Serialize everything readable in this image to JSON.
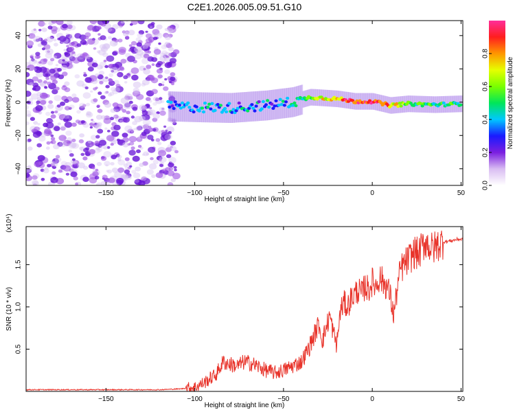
{
  "title": "C2E1.2026.005.09.51.G10",
  "chart_data": [
    {
      "type": "heatmap",
      "xlabel": "Height of straight line (km)",
      "ylabel": "Frequency (Hz)",
      "xlim": [
        -195,
        51
      ],
      "ylim": [
        -50,
        49
      ],
      "x_ticks": [
        -150,
        -100,
        -50,
        0,
        50
      ],
      "y_ticks": [
        -40,
        -20,
        0,
        20,
        40
      ],
      "colorbar": {
        "label": "Normalized spectral amplitude",
        "range": [
          0,
          1
        ],
        "ticks": [
          "0.0",
          "0.2",
          "0.4",
          "0.6",
          "0.8"
        ]
      },
      "frequency_track": [
        {
          "x": -115,
          "f": -2.5,
          "amp": 0.4
        },
        {
          "x": -100,
          "f": -3.0,
          "amp": 0.38
        },
        {
          "x": -80,
          "f": -3.5,
          "amp": 0.42
        },
        {
          "x": -60,
          "f": -2.0,
          "amp": 0.4
        },
        {
          "x": -45,
          "f": 0.0,
          "amp": 0.45
        },
        {
          "x": -35,
          "f": 3.0,
          "amp": 0.6
        },
        {
          "x": -20,
          "f": 2.0,
          "amp": 0.85
        },
        {
          "x": -10,
          "f": 0.5,
          "amp": 0.95
        },
        {
          "x": 0,
          "f": 0.5,
          "amp": 0.95
        },
        {
          "x": 10,
          "f": -2.0,
          "amp": 0.85
        },
        {
          "x": 20,
          "f": -1.0,
          "amp": 0.6
        },
        {
          "x": 35,
          "f": -1.5,
          "amp": 0.55
        },
        {
          "x": 50,
          "f": -1.0,
          "amp": 0.5
        }
      ],
      "noise_region_x": [
        -195,
        -110
      ],
      "grid": false
    },
    {
      "type": "line",
      "xlabel": "Height of straight line (km)",
      "ylabel": "SNR (10 * v/v)",
      "y_multiplier": "(x10⁴)",
      "xlim": [
        -195,
        51
      ],
      "ylim": [
        0,
        1.95
      ],
      "x_ticks": [
        -150,
        -100,
        -50,
        0,
        50
      ],
      "y_ticks": [
        "0.5",
        "1.0",
        "1.5"
      ],
      "color": "#e8332a",
      "series": [
        {
          "x": [
            -195,
            -150,
            -120,
            -108,
            -100,
            -95,
            -88,
            -84,
            -80,
            -76,
            -72,
            -68,
            -65,
            -60,
            -55,
            -50,
            -45,
            -40,
            -36,
            -32,
            -30,
            -28,
            -26,
            -24,
            -22,
            -20,
            -18,
            -16,
            -14,
            -12,
            -10,
            -8,
            -6,
            -4,
            -2,
            0,
            2,
            4,
            6,
            8,
            10,
            12,
            14,
            16,
            18,
            20,
            22,
            24,
            26,
            28,
            30,
            32,
            34,
            36,
            38,
            40,
            44,
            48,
            51
          ],
          "values": [
            0.02,
            0.02,
            0.02,
            0.03,
            0.05,
            0.1,
            0.2,
            0.35,
            0.32,
            0.3,
            0.35,
            0.33,
            0.3,
            0.25,
            0.22,
            0.25,
            0.3,
            0.35,
            0.5,
            0.7,
            0.8,
            0.6,
            0.75,
            0.9,
            0.7,
            0.55,
            0.95,
            1.05,
            1.0,
            1.1,
            1.15,
            1.2,
            1.15,
            1.25,
            1.2,
            1.3,
            1.25,
            1.35,
            1.3,
            1.25,
            1.15,
            0.9,
            1.2,
            1.45,
            1.5,
            1.55,
            1.6,
            1.65,
            1.62,
            1.7,
            1.78,
            1.72,
            1.68,
            1.72,
            1.75,
            1.77,
            1.78,
            1.8,
            1.8
          ]
        }
      ],
      "grid": false
    }
  ]
}
